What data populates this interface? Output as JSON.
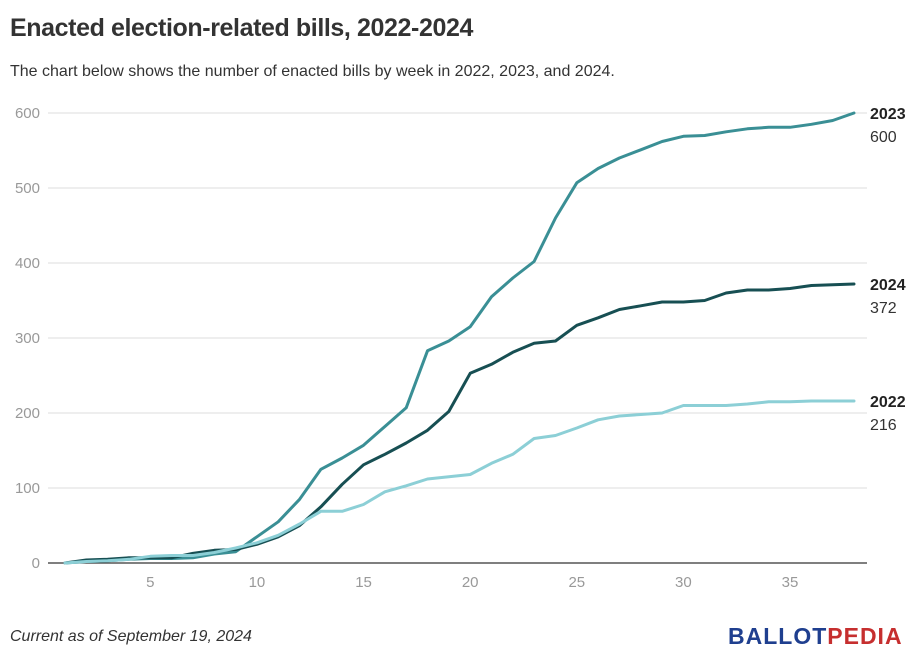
{
  "title": "Enacted election-related bills, 2022-2024",
  "subtitle": "The chart below shows the number of enacted bills by week in 2022, 2023, and 2024.",
  "footer_note": "Current as of September 19, 2024",
  "brand": {
    "part1": "BALLOT",
    "part2": "PEDIA",
    "color1": "#1f3f8f",
    "color2": "#c62f2f"
  },
  "chart_data": {
    "type": "line",
    "title": "Enacted election-related bills, 2022-2024",
    "xlabel": "",
    "ylabel": "",
    "xlim": [
      1,
      38
    ],
    "ylim": [
      0,
      600
    ],
    "x_ticks": [
      5,
      10,
      15,
      20,
      25,
      30,
      35
    ],
    "y_ticks": [
      0,
      100,
      200,
      300,
      400,
      500,
      600
    ],
    "grid": "horizontal",
    "legend": "direct labels at line ends (right)",
    "x": [
      1,
      2,
      3,
      4,
      5,
      6,
      7,
      8,
      9,
      10,
      11,
      12,
      13,
      14,
      15,
      16,
      17,
      18,
      19,
      20,
      21,
      22,
      23,
      24,
      25,
      26,
      27,
      28,
      29,
      30,
      31,
      32,
      33,
      34,
      35,
      36,
      37,
      38
    ],
    "series": [
      {
        "name": "2023",
        "end_label": "600",
        "color": "#3a8f95",
        "values": [
          0,
          2,
          3,
          5,
          6,
          6,
          7,
          12,
          15,
          35,
          55,
          85,
          125,
          140,
          157,
          182,
          207,
          283,
          296,
          315,
          355,
          380,
          402,
          460,
          507,
          526,
          540,
          551,
          562,
          569,
          570,
          575,
          579,
          581,
          581,
          585,
          590,
          600
        ]
      },
      {
        "name": "2024",
        "end_label": "372",
        "color": "#174f53",
        "values": [
          0,
          4,
          5,
          7,
          7,
          7,
          13,
          17,
          18,
          25,
          35,
          50,
          75,
          105,
          131,
          145,
          160,
          177,
          202,
          253,
          265,
          281,
          293,
          296,
          317,
          327,
          338,
          343,
          348,
          348,
          350,
          360,
          364,
          364,
          366,
          370,
          371,
          372
        ]
      },
      {
        "name": "2022",
        "end_label": "216",
        "color": "#8ccfd6",
        "values": [
          0,
          2,
          3,
          5,
          9,
          10,
          10,
          14,
          20,
          27,
          37,
          52,
          69,
          69,
          78,
          95,
          103,
          112,
          115,
          118,
          133,
          145,
          166,
          170,
          180,
          191,
          196,
          198,
          200,
          210,
          210,
          210,
          212,
          215,
          215,
          216,
          216,
          216
        ]
      }
    ]
  }
}
